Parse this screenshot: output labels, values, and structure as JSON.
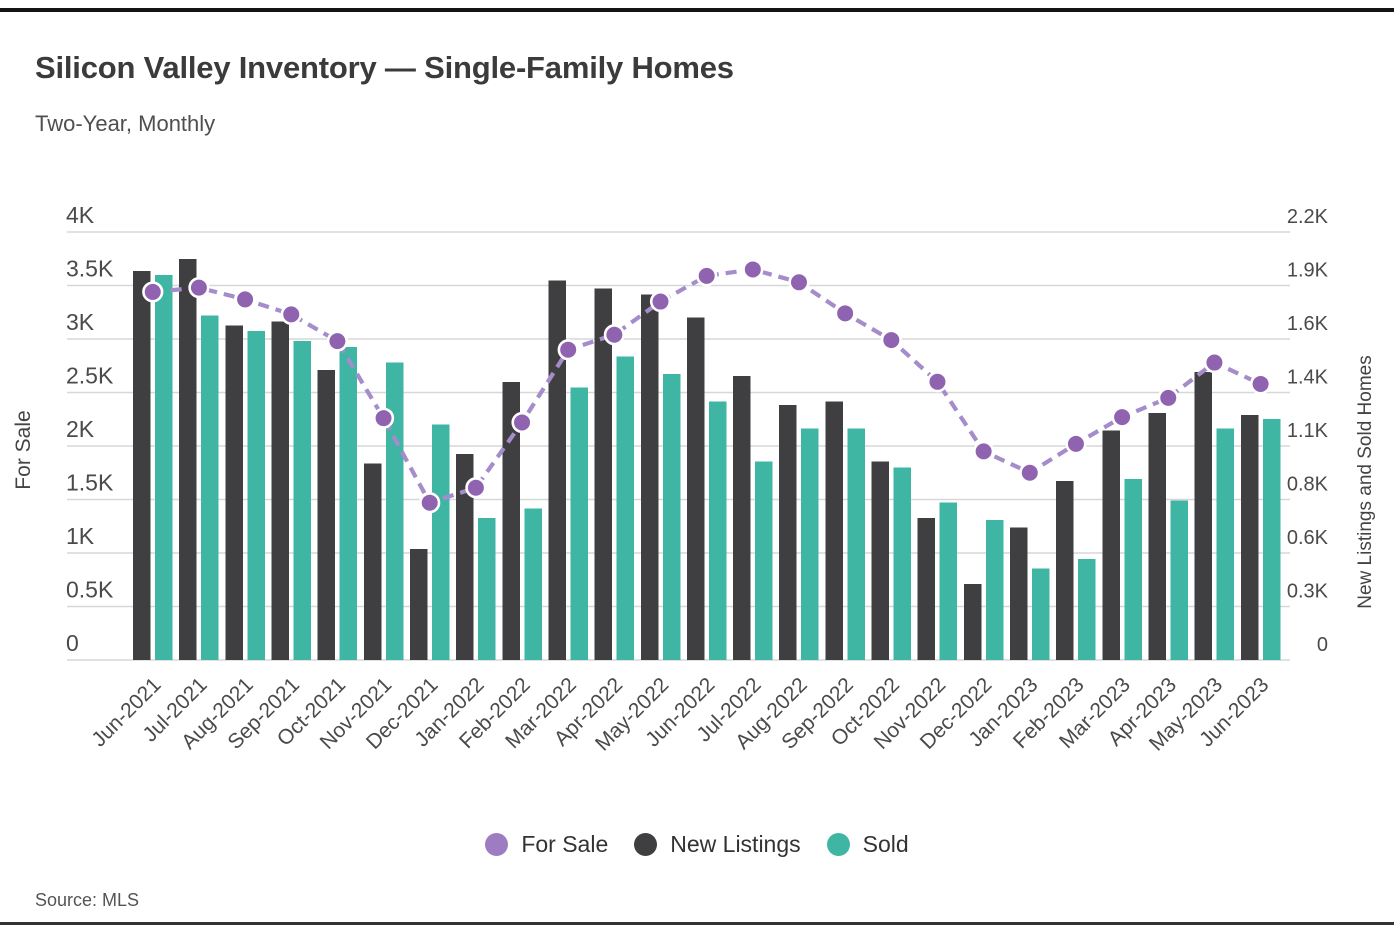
{
  "header": {
    "title": "Silicon Valley Inventory — Single-Family Homes",
    "subtitle": "Two-Year, Monthly"
  },
  "source": "Source: MLS",
  "colors": {
    "for_sale_marker": "#8f63b0",
    "for_sale_line": "#a58ccb",
    "new_listings": "#3f3f41",
    "sold": "#3fb5a4",
    "grid": "#d7d7d7",
    "axis_text": "#4a4a4a",
    "title_text": "#3b3b3b"
  },
  "legend": [
    {
      "label": "For Sale",
      "color": "#9e7cc1"
    },
    {
      "label": "New Listings",
      "color": "#3f3f41"
    },
    {
      "label": "Sold",
      "color": "#3fb5a4"
    }
  ],
  "chart_data": {
    "type": "combo bar+line",
    "grid": true,
    "legend_position": "bottom",
    "categories": [
      "Jun-2021",
      "Jul-2021",
      "Aug-2021",
      "Sep-2021",
      "Oct-2021",
      "Nov-2021",
      "Dec-2021",
      "Jan-2022",
      "Feb-2022",
      "Mar-2022",
      "Apr-2022",
      "May-2022",
      "Jun-2022",
      "Jul-2022",
      "Aug-2022",
      "Sep-2022",
      "Oct-2022",
      "Nov-2022",
      "Dec-2022",
      "Jan-2023",
      "Feb-2023",
      "Mar-2023",
      "Apr-2023",
      "May-2023",
      "Jun-2023"
    ],
    "left_axis": {
      "title": "For Sale",
      "min": 0,
      "max": 4000,
      "tick_labels": [
        "0",
        "0.5K",
        "1K",
        "1.5K",
        "2K",
        "2.5K",
        "3K",
        "3.5K",
        "4K"
      ]
    },
    "right_axis": {
      "title": "New Listings and Sold Homes",
      "min": 0,
      "max": 2200,
      "tick_labels": [
        "0",
        "0.3K",
        "0.6K",
        "0.8K",
        "1.1K",
        "1.4K",
        "1.6K",
        "1.9K",
        "2.2K"
      ]
    },
    "series": [
      {
        "name": "For Sale",
        "type": "line",
        "axis": "left",
        "values": [
          3440,
          3480,
          3370,
          3230,
          2980,
          2260,
          1470,
          1610,
          2220,
          2900,
          3040,
          3350,
          3590,
          3650,
          3530,
          3240,
          2990,
          2600,
          1950,
          1750,
          2020,
          2270,
          2450,
          2780,
          2580
        ]
      },
      {
        "name": "New Listings",
        "type": "bar",
        "axis": "right",
        "values": [
          2000,
          2060,
          1720,
          1740,
          1490,
          1010,
          570,
          1060,
          1430,
          1950,
          1910,
          1880,
          1760,
          1460,
          1310,
          1330,
          1020,
          730,
          390,
          680,
          920,
          1180,
          1270,
          1480,
          1260
        ]
      },
      {
        "name": "Sold",
        "type": "bar",
        "axis": "right",
        "values": [
          1980,
          1770,
          1690,
          1640,
          1610,
          1530,
          1210,
          730,
          780,
          1400,
          1560,
          1470,
          1330,
          1020,
          1190,
          1190,
          990,
          810,
          720,
          470,
          520,
          930,
          820,
          1190,
          1240
        ]
      }
    ]
  }
}
